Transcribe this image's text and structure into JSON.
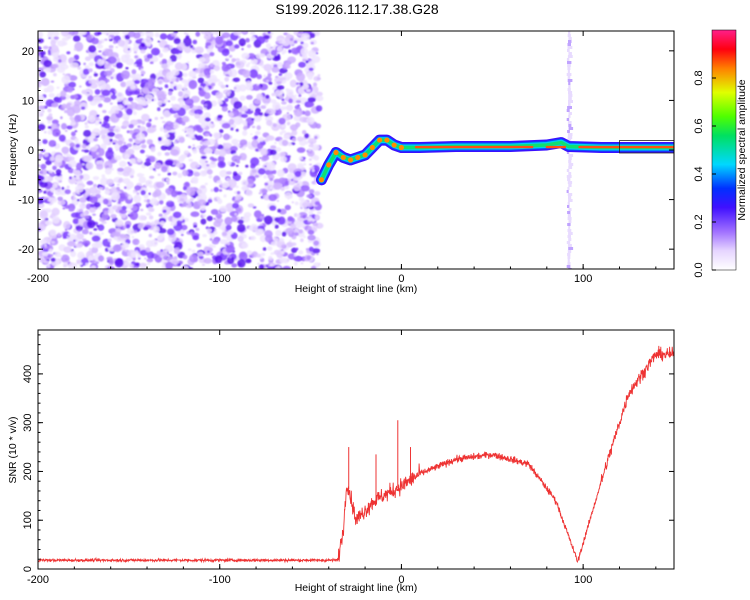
{
  "title": "S199.2026.112.17.38.G28",
  "chart_data": [
    {
      "type": "heatmap",
      "name": "spectrogram",
      "xlabel": "Height of straight line (km)",
      "ylabel": "Frequency (Hz)",
      "xlim": [
        -200,
        150
      ],
      "ylim": [
        -24,
        24
      ],
      "xticks": [
        -200,
        -100,
        0,
        100
      ],
      "xtick_labels": [
        "-200",
        "-100",
        "0",
        "100"
      ],
      "yticks": [
        -20,
        -10,
        0,
        10,
        20
      ],
      "ytick_labels": [
        "-20",
        "-10",
        "0",
        "10",
        "20"
      ],
      "noise_region_x": [
        -200,
        -45
      ],
      "spike_x": 92,
      "carrier_trace": [
        {
          "x": -44,
          "y": -6
        },
        {
          "x": -40,
          "y": -3
        },
        {
          "x": -36,
          "y": -0.5
        },
        {
          "x": -32,
          "y": -1.5
        },
        {
          "x": -28,
          "y": -2
        },
        {
          "x": -24,
          "y": -1.5
        },
        {
          "x": -20,
          "y": -1
        },
        {
          "x": -16,
          "y": 0.5
        },
        {
          "x": -12,
          "y": 2
        },
        {
          "x": -8,
          "y": 2
        },
        {
          "x": -4,
          "y": 1
        },
        {
          "x": 0,
          "y": 0.5
        },
        {
          "x": 10,
          "y": 0.5
        },
        {
          "x": 30,
          "y": 0.7
        },
        {
          "x": 60,
          "y": 0.7
        },
        {
          "x": 80,
          "y": 1
        },
        {
          "x": 88,
          "y": 1.5
        },
        {
          "x": 92,
          "y": 0.7
        },
        {
          "x": 110,
          "y": 0.5
        },
        {
          "x": 150,
          "y": 0.5
        }
      ],
      "colorbar": {
        "label": "Normalized spectral amplitude",
        "ticks": [
          0.0,
          0.2,
          0.4,
          0.6,
          0.8
        ],
        "tick_labels": [
          "0.0",
          "0.2",
          "0.4",
          "0.6",
          "0.8"
        ],
        "range": [
          0,
          1
        ]
      }
    },
    {
      "type": "line",
      "name": "snr",
      "xlabel": "Height of straight line (km)",
      "ylabel": "SNR (10 * v/v)",
      "xlim": [
        -200,
        150
      ],
      "ylim": [
        0,
        490
      ],
      "xticks": [
        -200,
        -100,
        0,
        100
      ],
      "xtick_labels": [
        "-200",
        "-100",
        "0",
        "100"
      ],
      "yticks": [
        0,
        100,
        200,
        300,
        400
      ],
      "ytick_labels": [
        "0",
        "100",
        "200",
        "300",
        "400"
      ],
      "color": "#ee3333",
      "series": [
        {
          "name": "SNR",
          "points": [
            {
              "x": -200,
              "y": 18
            },
            {
              "x": -100,
              "y": 18
            },
            {
              "x": -35,
              "y": 18
            },
            {
              "x": -32,
              "y": 80
            },
            {
              "x": -30,
              "y": 180
            },
            {
              "x": -25,
              "y": 100
            },
            {
              "x": -15,
              "y": 140
            },
            {
              "x": 0,
              "y": 170
            },
            {
              "x": 10,
              "y": 195
            },
            {
              "x": 30,
              "y": 225
            },
            {
              "x": 50,
              "y": 235
            },
            {
              "x": 70,
              "y": 215
            },
            {
              "x": 85,
              "y": 140
            },
            {
              "x": 97,
              "y": 15
            },
            {
              "x": 110,
              "y": 180
            },
            {
              "x": 125,
              "y": 360
            },
            {
              "x": 140,
              "y": 440
            },
            {
              "x": 150,
              "y": 440
            }
          ],
          "spikes": [
            {
              "x": -29,
              "y": 250
            },
            {
              "x": -14,
              "y": 235
            },
            {
              "x": -2,
              "y": 305
            },
            {
              "x": 5,
              "y": 250
            },
            {
              "x": 18,
              "y": 210
            }
          ]
        }
      ]
    }
  ]
}
